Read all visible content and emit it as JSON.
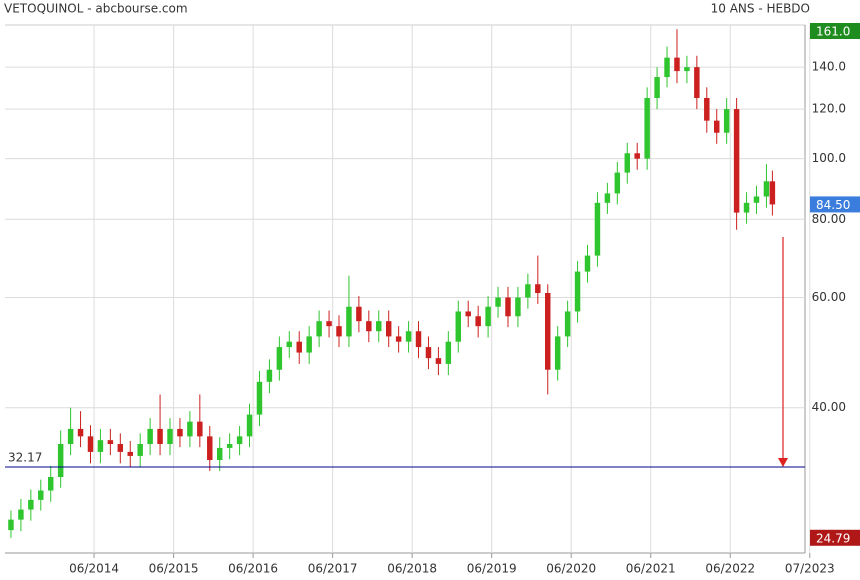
{
  "chart_data": {
    "type": "candlestick",
    "title": "VETOQUINOL - abcbourse.com",
    "subtitle": "10 ANS - HEBDO",
    "log_scale": true,
    "grid": true,
    "up_color": "#2ec52e",
    "down_color": "#cc2020",
    "x": [
      2013.375,
      2013.5,
      2013.625,
      2013.75,
      2013.875,
      2014,
      2014.125,
      2014.25,
      2014.375,
      2014.5,
      2014.625,
      2014.75,
      2014.875,
      2015,
      2015.125,
      2015.25,
      2015.375,
      2015.5,
      2015.625,
      2015.75,
      2015.875,
      2016,
      2016.125,
      2016.25,
      2016.375,
      2016.5,
      2016.625,
      2016.75,
      2016.875,
      2017,
      2017.125,
      2017.25,
      2017.375,
      2017.5,
      2017.625,
      2017.75,
      2017.875,
      2018,
      2018.125,
      2018.25,
      2018.375,
      2018.5,
      2018.625,
      2018.75,
      2018.875,
      2019,
      2019.125,
      2019.25,
      2019.375,
      2019.5,
      2019.625,
      2019.75,
      2019.875,
      2020,
      2020.125,
      2020.25,
      2020.375,
      2020.5,
      2020.625,
      2020.75,
      2020.875,
      2021,
      2021.125,
      2021.25,
      2021.375,
      2021.5,
      2021.625,
      2021.75,
      2021.875,
      2022,
      2022.125,
      2022.25,
      2022.375,
      2022.5,
      2022.625,
      2022.75,
      2022.875,
      2022.95
    ],
    "open": [
      25.5,
      26.5,
      27.5,
      28.5,
      29.5,
      31,
      35,
      37,
      36,
      34,
      35.5,
      35,
      34,
      33.5,
      35,
      37,
      35,
      37,
      36,
      38,
      36,
      33,
      34.5,
      35,
      36,
      39,
      44,
      46,
      50,
      51,
      49,
      52,
      55,
      54,
      52,
      58,
      55,
      53,
      55,
      52,
      51,
      53,
      50,
      48,
      47,
      51,
      57,
      56,
      54,
      58,
      60,
      56,
      60,
      63,
      61,
      46,
      52,
      57,
      66,
      70,
      85,
      88,
      95,
      102,
      100,
      125,
      135,
      145,
      138,
      140,
      125,
      115,
      110,
      120,
      82,
      85,
      87,
      92
    ],
    "high": [
      27.4,
      28.6,
      29.6,
      30.7,
      32.3,
      36.8,
      40,
      39.5,
      37.5,
      37,
      37,
      36.4,
      35.4,
      36.4,
      38.5,
      42,
      38.5,
      38.5,
      39.5,
      42,
      37.4,
      35.9,
      36.4,
      37.4,
      40.6,
      45.8,
      47.8,
      52,
      53,
      53,
      54,
      57.2,
      57.2,
      56.2,
      65,
      60.3,
      57.2,
      57.2,
      57.2,
      54,
      55,
      55,
      52,
      50,
      53,
      59.3,
      59.3,
      58.2,
      60.3,
      62.4,
      62.4,
      62.4,
      65.5,
      70,
      63,
      54,
      59.3,
      68.6,
      72.8,
      88.4,
      91.5,
      98.8,
      106,
      106,
      130,
      140,
      151,
      161,
      146,
      146,
      130,
      120,
      125,
      125,
      88.4,
      90.5,
      98,
      95.7
    ],
    "low": [
      24.79,
      25.4,
      26.4,
      27.4,
      28.3,
      29.8,
      33.6,
      34.6,
      32.6,
      32.6,
      33.6,
      32.6,
      32.2,
      32.2,
      33.6,
      33.6,
      33.6,
      34.6,
      34.6,
      34.6,
      31.7,
      31.7,
      33.1,
      33.6,
      34.6,
      37.4,
      42.2,
      44.2,
      48,
      47,
      47,
      50,
      51.8,
      50,
      50,
      52.8,
      50.9,
      50.9,
      50,
      49,
      49,
      48,
      46.1,
      45.1,
      45.1,
      49,
      53.8,
      51.8,
      51.8,
      55.7,
      53.8,
      53.8,
      57.6,
      58.6,
      42,
      44.2,
      50,
      54.7,
      63.4,
      67.2,
      81.6,
      84.5,
      91.2,
      96,
      96,
      120,
      130,
      132,
      132,
      120,
      110,
      105.6,
      105.6,
      77,
      78.7,
      81.6,
      83.5,
      81.1
    ],
    "close": [
      26.5,
      27.5,
      28.5,
      29.5,
      31,
      35,
      37,
      36,
      34,
      35.5,
      35,
      34,
      33.5,
      35,
      37,
      35,
      37,
      36,
      38,
      36,
      33,
      34.5,
      35,
      36,
      39,
      44,
      46,
      50,
      51,
      49,
      52,
      55,
      54,
      52,
      58,
      55,
      53,
      55,
      52,
      51,
      53,
      50,
      48,
      47,
      51,
      57,
      56,
      54,
      58,
      60,
      56,
      60,
      63,
      61,
      46,
      52,
      57,
      66,
      70,
      85,
      88,
      95,
      102,
      100,
      125,
      135,
      145,
      138,
      140,
      125,
      115,
      110,
      120,
      82,
      85,
      87,
      92,
      84.5
    ],
    "xlim": [
      2013.3,
      2023.36
    ],
    "xticks": [
      {
        "value": 2014.42,
        "label": "06/2014"
      },
      {
        "value": 2015.42,
        "label": "06/2015"
      },
      {
        "value": 2016.42,
        "label": "06/2016"
      },
      {
        "value": 2017.42,
        "label": "06/2017"
      },
      {
        "value": 2018.42,
        "label": "06/2018"
      },
      {
        "value": 2019.42,
        "label": "06/2019"
      },
      {
        "value": 2020.42,
        "label": "06/2020"
      },
      {
        "value": 2021.42,
        "label": "06/2021"
      },
      {
        "value": 2022.42,
        "label": "06/2022"
      },
      {
        "value": 2023.42,
        "label": "07/2023"
      }
    ],
    "ylim": [
      23.7,
      163.5
    ],
    "yticks": [
      {
        "value": 40,
        "label": "40.00"
      },
      {
        "value": 60,
        "label": "60.00"
      },
      {
        "value": 80,
        "label": "80.00"
      },
      {
        "value": 100,
        "label": "100.0"
      },
      {
        "value": 120,
        "label": "120.0"
      },
      {
        "value": 140,
        "label": "140.0"
      }
    ],
    "hline": {
      "value": 32.17,
      "color": "#00008b"
    },
    "price_tags": [
      {
        "value": 161,
        "label": "161.0",
        "color": "#1e8c1e"
      },
      {
        "value": 84.5,
        "label": "84.50",
        "color": "#3b7ddd"
      },
      {
        "value": 24.79,
        "label": "24.79",
        "color": "#b01818"
      }
    ]
  }
}
